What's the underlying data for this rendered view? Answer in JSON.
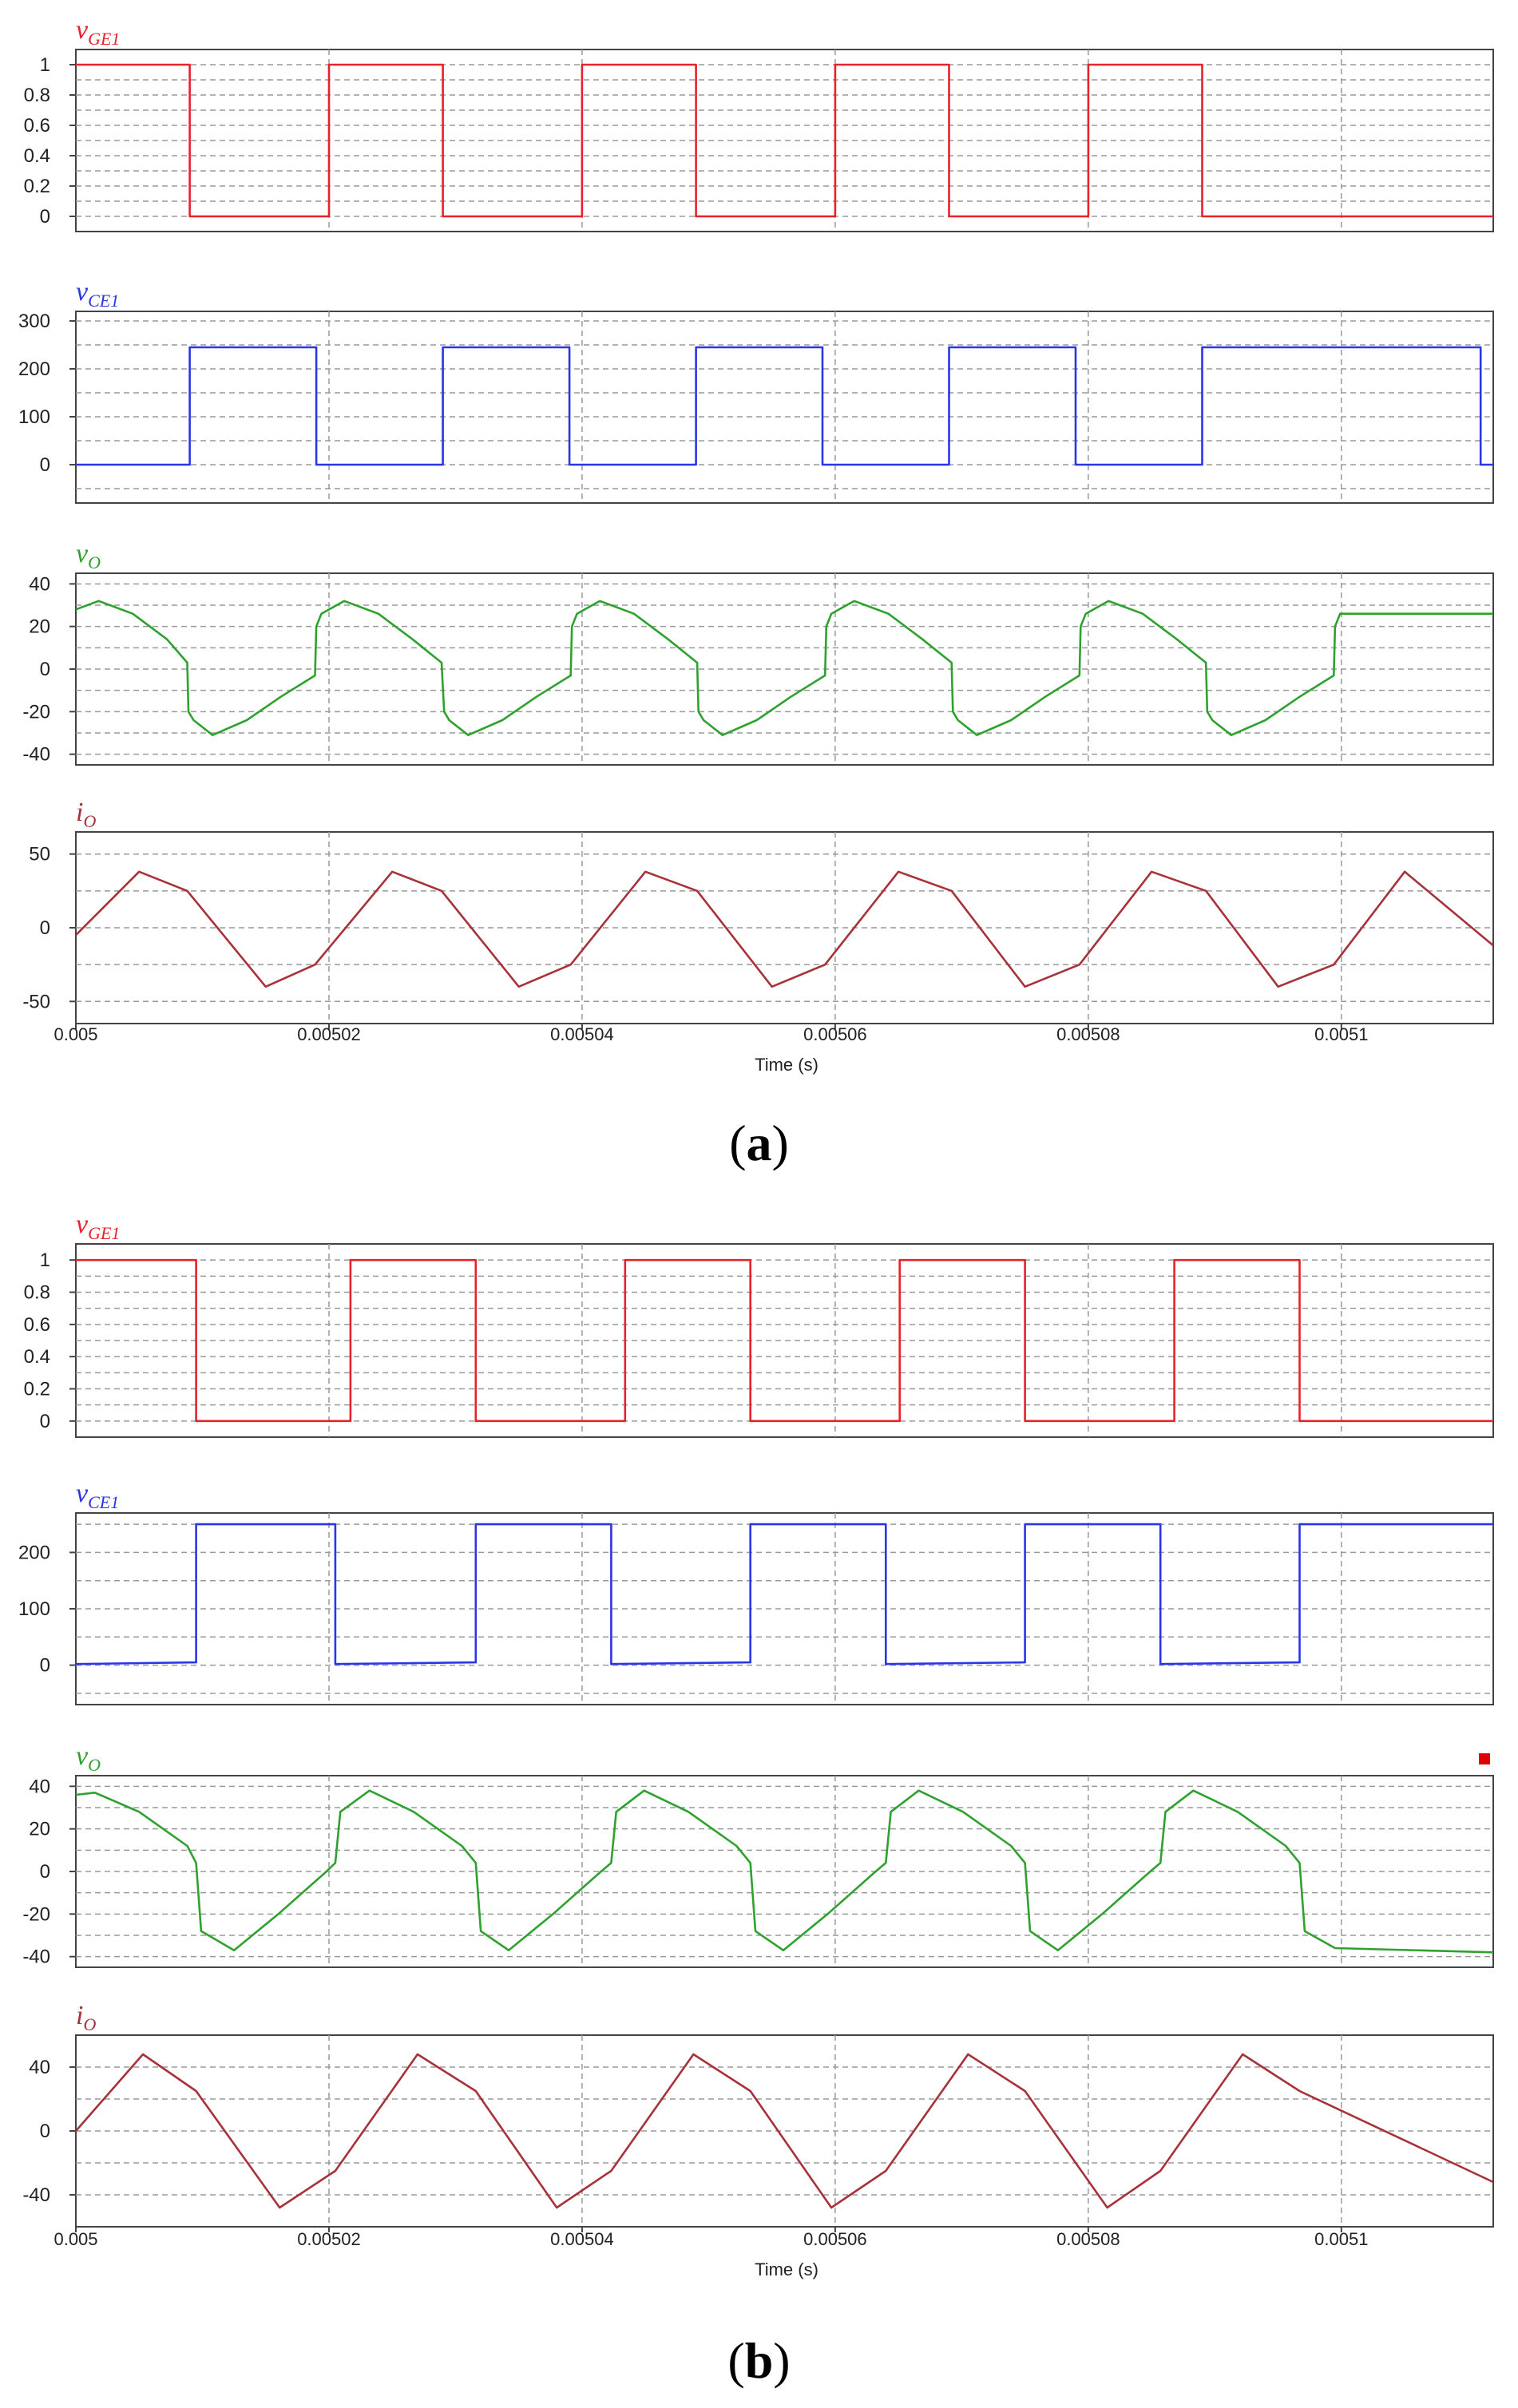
{
  "figure": {
    "panels": [
      {
        "label_open": "(",
        "label_letter": "a",
        "label_close": ")",
        "xaxis": {
          "label": "Time (s)",
          "ticks": [
            0.005,
            0.00502,
            0.00504,
            0.00506,
            0.00508,
            0.0051
          ],
          "tick_labels": [
            "0.005",
            "0.00502",
            "0.00504",
            "0.00506",
            "0.00508",
            "0.0051"
          ],
          "range": [
            0.005,
            0.005112
          ]
        },
        "marker": null
      },
      {
        "label_open": "(",
        "label_letter": "b",
        "label_close": ")",
        "xaxis": {
          "label": "Time (s)",
          "ticks": [
            0.005,
            0.00502,
            0.00504,
            0.00506,
            0.00508,
            0.0051
          ],
          "tick_labels": [
            "0.005",
            "0.00502",
            "0.00504",
            "0.00506",
            "0.00508",
            "0.0051"
          ],
          "range": [
            0.005,
            0.005112
          ]
        },
        "marker": {
          "color": "#e00000",
          "subplot": 2
        }
      }
    ]
  },
  "chart_data": [
    {
      "panel": "a",
      "type": "line",
      "title_main": "v",
      "title_sub": "GE1",
      "color": "#e8222b",
      "ylim": [
        -0.1,
        1.1
      ],
      "yticks": [
        0,
        0.2,
        0.4,
        0.6,
        0.8,
        1
      ],
      "ytick_labels": [
        "0",
        "0.2",
        "0.4",
        "0.6",
        "0.8",
        "1"
      ],
      "grid": true,
      "x": [
        0.005,
        0.005009,
        0.005009,
        0.00502,
        0.00502,
        0.005029,
        0.005029,
        0.00504,
        0.00504,
        0.005049,
        0.005049,
        0.00506,
        0.00506,
        0.005069,
        0.005069,
        0.00508,
        0.00508,
        0.005089,
        0.005089,
        0.005112
      ],
      "y": [
        1,
        1,
        0,
        0,
        1,
        1,
        0,
        0,
        1,
        1,
        0,
        0,
        1,
        1,
        0,
        0,
        1,
        1,
        0,
        0
      ]
    },
    {
      "panel": "a",
      "type": "line",
      "title_main": "v",
      "title_sub": "CE1",
      "color": "#2b35e8",
      "ylim": [
        -80,
        320
      ],
      "yticks": [
        0,
        100,
        200,
        300
      ],
      "ytick_labels": [
        "0",
        "100",
        "200",
        "300"
      ],
      "grid": true,
      "x": [
        0.005,
        0.005009,
        0.005009,
        0.005019,
        0.005019,
        0.005029,
        0.005029,
        0.005039,
        0.005039,
        0.005049,
        0.005049,
        0.005059,
        0.005059,
        0.005069,
        0.005069,
        0.005079,
        0.005079,
        0.005089,
        0.005089,
        0.005111,
        0.005111,
        0.005112
      ],
      "y": [
        0,
        0,
        245,
        245,
        0,
        0,
        245,
        245,
        0,
        0,
        245,
        245,
        0,
        0,
        245,
        245,
        0,
        0,
        245,
        245,
        0,
        0
      ]
    },
    {
      "panel": "a",
      "type": "line",
      "title_main": "v",
      "title_sub": "O",
      "color": "#2ea12e",
      "ylim": [
        -45,
        45
      ],
      "yticks": [
        -40,
        -20,
        0,
        20,
        40
      ],
      "ytick_labels": [
        "-40",
        "-20",
        "0",
        "20",
        "40"
      ],
      "grid": true,
      "x": [
        0.005,
        0.0050018,
        0.0050045,
        0.0050072,
        0.0050088,
        0.0050089,
        0.0050093,
        0.0050108,
        0.0050135,
        0.0050162,
        0.0050189,
        0.005019,
        0.0050194,
        0.0050212,
        0.0050239,
        0.0050266,
        0.0050289,
        0.0050291,
        0.0050295,
        0.005031,
        0.0050337,
        0.0050364,
        0.0050391,
        0.0050392,
        0.0050396,
        0.0050414,
        0.0050441,
        0.0050468,
        0.0050491,
        0.0050492,
        0.0050496,
        0.0050511,
        0.0050538,
        0.0050565,
        0.0050592,
        0.0050593,
        0.0050597,
        0.0050615,
        0.0050642,
        0.0050669,
        0.0050692,
        0.0050693,
        0.0050697,
        0.0050712,
        0.0050739,
        0.0050766,
        0.0050793,
        0.0050794,
        0.0050798,
        0.0050816,
        0.0050843,
        0.005087,
        0.0050893,
        0.0050894,
        0.0050898,
        0.0050913,
        0.005094,
        0.0050967,
        0.0050994,
        0.0050995,
        0.0050999,
        0.005112
      ],
      "y": [
        28,
        32,
        26,
        14,
        3,
        -20,
        -24,
        -31,
        -24,
        -13,
        -3,
        20,
        26,
        32,
        26,
        14,
        3,
        -20,
        -24,
        -31,
        -24,
        -13,
        -3,
        20,
        26,
        32,
        26,
        14,
        3,
        -20,
        -24,
        -31,
        -24,
        -13,
        -3,
        20,
        26,
        32,
        26,
        14,
        3,
        -20,
        -24,
        -31,
        -24,
        -13,
        -3,
        20,
        26,
        32,
        26,
        14,
        3,
        -20,
        -24,
        -31,
        -24,
        -13,
        -3,
        20,
        26,
        26
      ]
    },
    {
      "panel": "a",
      "type": "line",
      "title_main": "i",
      "title_sub": "O",
      "color": "#a8323a",
      "ylim": [
        -65,
        65
      ],
      "yticks": [
        -50,
        0,
        50
      ],
      "ytick_labels": [
        "-50",
        "0",
        "50"
      ],
      "grid": true,
      "x": [
        0.005,
        0.005005,
        0.0050088,
        0.005015,
        0.0050189,
        0.005025,
        0.0050289,
        0.005035,
        0.0050391,
        0.005045,
        0.0050491,
        0.005055,
        0.0050592,
        0.005065,
        0.0050692,
        0.005075,
        0.0050793,
        0.005085,
        0.0050893,
        0.005095,
        0.0050994,
        0.005105,
        0.005112
      ],
      "y": [
        -5,
        38,
        25,
        -40,
        -25,
        38,
        25,
        -40,
        -25,
        38,
        25,
        -40,
        -25,
        38,
        25,
        -40,
        -25,
        38,
        25,
        -40,
        -25,
        38,
        -12
      ]
    },
    {
      "panel": "b",
      "type": "line",
      "title_main": "v",
      "title_sub": "GE1",
      "color": "#e8222b",
      "ylim": [
        -0.1,
        1.1
      ],
      "yticks": [
        0,
        0.2,
        0.4,
        0.6,
        0.8,
        1
      ],
      "ytick_labels": [
        "0",
        "0.2",
        "0.4",
        "0.6",
        "0.8",
        "1"
      ],
      "grid": true,
      "x": [
        0.005,
        0.0050095,
        0.0050095,
        0.0050217,
        0.0050217,
        0.0050316,
        0.0050316,
        0.0050434,
        0.0050434,
        0.0050533,
        0.0050533,
        0.0050651,
        0.0050651,
        0.005075,
        0.005075,
        0.0050868,
        0.0050868,
        0.0050967,
        0.0050967,
        0.005112
      ],
      "y": [
        1,
        1,
        0,
        0,
        1,
        1,
        0,
        0,
        1,
        1,
        0,
        0,
        1,
        1,
        0,
        0,
        1,
        1,
        0,
        0
      ]
    },
    {
      "panel": "b",
      "type": "line",
      "title_main": "v",
      "title_sub": "CE1",
      "color": "#2b35e8",
      "ylim": [
        -70,
        270
      ],
      "yticks": [
        0,
        100,
        200
      ],
      "ytick_labels": [
        "0",
        "100",
        "200"
      ],
      "grid": true,
      "x": [
        0.005,
        0.0050095,
        0.0050095,
        0.0050205,
        0.0050205,
        0.0050316,
        0.0050316,
        0.0050423,
        0.0050423,
        0.0050533,
        0.0050533,
        0.005064,
        0.005064,
        0.005075,
        0.005075,
        0.0050857,
        0.0050857,
        0.0050967,
        0.0050967,
        0.005112
      ],
      "y": [
        2,
        5,
        250,
        250,
        2,
        5,
        250,
        250,
        2,
        5,
        250,
        250,
        2,
        5,
        250,
        250,
        2,
        5,
        250,
        250
      ]
    },
    {
      "panel": "b",
      "type": "line",
      "title_main": "v",
      "title_sub": "O",
      "color": "#2ea12e",
      "ylim": [
        -45,
        45
      ],
      "yticks": [
        -40,
        -20,
        0,
        20,
        40
      ],
      "ytick_labels": [
        "-40",
        "-20",
        "0",
        "20",
        "40"
      ],
      "grid": true,
      "x": [
        0.005,
        0.0050015,
        0.005005,
        0.0050088,
        0.0050095,
        0.0050099,
        0.0050125,
        0.005016,
        0.0050198,
        0.0050205,
        0.0050209,
        0.0050232,
        0.0050267,
        0.0050305,
        0.0050316,
        0.005032,
        0.0050342,
        0.0050377,
        0.0050415,
        0.0050423,
        0.0050427,
        0.0050449,
        0.0050484,
        0.0050522,
        0.0050533,
        0.0050537,
        0.0050559,
        0.0050594,
        0.0050632,
        0.005064,
        0.0050644,
        0.0050666,
        0.0050701,
        0.0050739,
        0.005075,
        0.0050754,
        0.0050776,
        0.0050811,
        0.0050849,
        0.0050857,
        0.0050861,
        0.0050883,
        0.0050918,
        0.0050956,
        0.0050967,
        0.0050971,
        0.0050995,
        0.005112
      ],
      "y": [
        36,
        37,
        28,
        12,
        4,
        -28,
        -37,
        -20,
        0,
        4,
        28,
        38,
        28,
        12,
        4,
        -28,
        -37,
        -20,
        0,
        4,
        28,
        38,
        28,
        12,
        4,
        -28,
        -37,
        -20,
        0,
        4,
        28,
        38,
        28,
        12,
        4,
        -28,
        -37,
        -20,
        0,
        4,
        28,
        38,
        28,
        12,
        4,
        -28,
        -36,
        -38
      ]
    },
    {
      "panel": "b",
      "type": "line",
      "title_main": "i",
      "title_sub": "O",
      "color": "#a8323a",
      "ylim": [
        -60,
        60
      ],
      "yticks": [
        -40,
        0,
        40
      ],
      "ytick_labels": [
        "-40",
        "0",
        "40"
      ],
      "grid": true,
      "x": [
        0.005,
        0.0050053,
        0.0050095,
        0.0050161,
        0.0050205,
        0.005027,
        0.0050316,
        0.005038,
        0.0050423,
        0.0050488,
        0.0050533,
        0.0050597,
        0.005064,
        0.0050705,
        0.005075,
        0.0050815,
        0.0050857,
        0.0050922,
        0.0050967,
        0.005112
      ],
      "y": [
        0,
        48,
        25,
        -48,
        -25,
        48,
        25,
        -48,
        -25,
        48,
        25,
        -48,
        -25,
        48,
        25,
        -48,
        -25,
        48,
        25,
        -32
      ]
    }
  ]
}
